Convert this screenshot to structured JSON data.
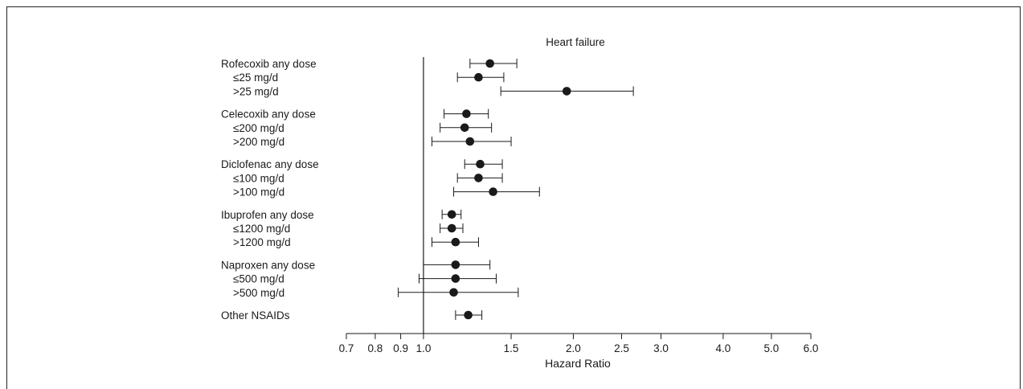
{
  "chart_data": {
    "type": "forest",
    "title": "Heart failure",
    "xlabel": "Hazard Ratio",
    "xscale": "log",
    "xlim": [
      0.7,
      6.0
    ],
    "reference_line": 1.0,
    "xticks": [
      0.7,
      0.8,
      0.9,
      1.0,
      1.5,
      2.0,
      2.5,
      3.0,
      4.0,
      5.0,
      6.0
    ],
    "xtick_labels": [
      "0.7",
      "0.8",
      "0.9",
      "1.0",
      "1.5",
      "2.0",
      "2.5",
      "3.0",
      "4.0",
      "5.0",
      "6.0"
    ],
    "groups": [
      {
        "name": "Rofecoxib",
        "rows": [
          {
            "label": "Rofecoxib any dose",
            "hr": 1.36,
            "lo": 1.24,
            "hi": 1.54,
            "indent": false
          },
          {
            "label": "≤25 mg/d",
            "hr": 1.29,
            "lo": 1.17,
            "hi": 1.45,
            "indent": true
          },
          {
            "label": ">25 mg/d",
            "hr": 1.94,
            "lo": 1.43,
            "hi": 2.64,
            "indent": true
          }
        ]
      },
      {
        "name": "Celecoxib",
        "rows": [
          {
            "label": "Celecoxib any dose",
            "hr": 1.22,
            "lo": 1.1,
            "hi": 1.35,
            "indent": false
          },
          {
            "label": "≤200 mg/d",
            "hr": 1.21,
            "lo": 1.08,
            "hi": 1.37,
            "indent": true
          },
          {
            "label": ">200 mg/d",
            "hr": 1.24,
            "lo": 1.04,
            "hi": 1.5,
            "indent": true
          }
        ]
      },
      {
        "name": "Diclofenac",
        "rows": [
          {
            "label": "Diclofenac any dose",
            "hr": 1.3,
            "lo": 1.21,
            "hi": 1.44,
            "indent": false
          },
          {
            "label": "≤100 mg/d",
            "hr": 1.29,
            "lo": 1.17,
            "hi": 1.44,
            "indent": true
          },
          {
            "label": ">100 mg/d",
            "hr": 1.38,
            "lo": 1.15,
            "hi": 1.71,
            "indent": true
          }
        ]
      },
      {
        "name": "Ibuprofen",
        "rows": [
          {
            "label": "Ibuprofen any dose",
            "hr": 1.14,
            "lo": 1.09,
            "hi": 1.19,
            "indent": false
          },
          {
            "label": "≤1200 mg/d",
            "hr": 1.14,
            "lo": 1.08,
            "hi": 1.2,
            "indent": true
          },
          {
            "label": ">1200 mg/d",
            "hr": 1.16,
            "lo": 1.04,
            "hi": 1.29,
            "indent": true
          }
        ]
      },
      {
        "name": "Naproxen",
        "rows": [
          {
            "label": "Naproxen any dose",
            "hr": 1.16,
            "lo": 1.0,
            "hi": 1.36,
            "indent": false
          },
          {
            "label": "≤500 mg/d",
            "hr": 1.16,
            "lo": 0.98,
            "hi": 1.4,
            "indent": true
          },
          {
            "label": ">500 mg/d",
            "hr": 1.15,
            "lo": 0.89,
            "hi": 1.55,
            "indent": true
          }
        ]
      },
      {
        "name": "Other",
        "rows": [
          {
            "label": "Other NSAIDs",
            "hr": 1.23,
            "lo": 1.16,
            "hi": 1.31,
            "indent": false
          }
        ]
      }
    ]
  }
}
